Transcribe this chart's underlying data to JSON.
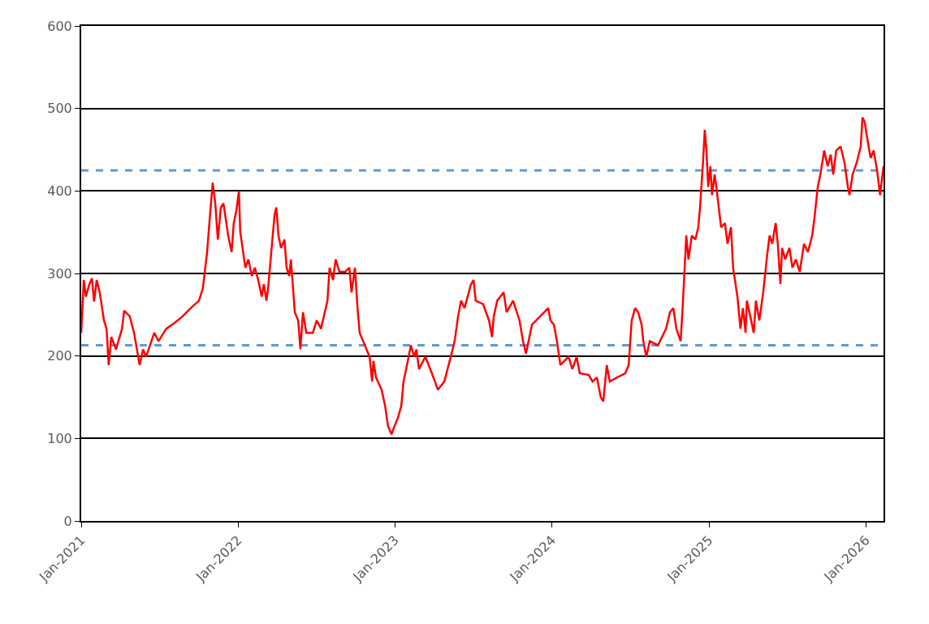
{
  "chart_data": {
    "type": "line",
    "grid": "y",
    "marker": "none",
    "line_style": "solid",
    "xlim": [
      "2021-01-01",
      "2026-02-11"
    ],
    "xticks": [
      {
        "value": "2021-01-01",
        "label": "Jan-2021"
      },
      {
        "value": "2022-01-01",
        "label": "Jan-2022"
      },
      {
        "value": "2023-01-01",
        "label": "Jan-2023"
      },
      {
        "value": "2024-01-01",
        "label": "Jan-2024"
      },
      {
        "value": "2025-01-01",
        "label": "Jan-2025"
      },
      {
        "value": "2026-01-01",
        "label": "Jan-2026"
      }
    ],
    "ylim": [
      0,
      600
    ],
    "yticks": [
      0,
      100,
      200,
      300,
      400,
      500,
      600
    ],
    "ref_lines": [
      {
        "axis": "y",
        "value": 425,
        "color": "#5b9bd5",
        "line_style": "dashed"
      },
      {
        "axis": "y",
        "value": 213,
        "color": "#5b9bd5",
        "line_style": "dashed"
      }
    ],
    "x": [
      "2021-01-01",
      "2021-01-07",
      "2021-01-12",
      "2021-01-20",
      "2021-01-26",
      "2021-01-31",
      "2021-02-06",
      "2021-02-13",
      "2021-02-23",
      "2021-03-01",
      "2021-03-06",
      "2021-03-12",
      "2021-03-23",
      "2021-04-06",
      "2021-04-11",
      "2021-04-24",
      "2021-05-04",
      "2021-05-17",
      "2021-05-25",
      "2021-06-01",
      "2021-06-20",
      "2021-06-30",
      "2021-07-18",
      "2021-08-06",
      "2021-08-25",
      "2021-09-13",
      "2021-10-02",
      "2021-10-11",
      "2021-10-21",
      "2021-10-27",
      "2021-11-03",
      "2021-11-09",
      "2021-11-15",
      "2021-11-22",
      "2021-11-28",
      "2021-12-09",
      "2021-12-17",
      "2021-12-22",
      "2021-12-28",
      "2022-01-03",
      "2022-01-06",
      "2022-01-18",
      "2022-01-25",
      "2022-02-02",
      "2022-02-09",
      "2022-02-17",
      "2022-02-25",
      "2022-03-02",
      "2022-03-08",
      "2022-03-12",
      "2022-03-21",
      "2022-03-27",
      "2022-03-31",
      "2022-04-05",
      "2022-04-11",
      "2022-04-19",
      "2022-04-24",
      "2022-04-30",
      "2022-05-04",
      "2022-05-13",
      "2022-05-21",
      "2022-05-26",
      "2022-06-01",
      "2022-06-09",
      "2022-06-24",
      "2022-07-03",
      "2022-07-13",
      "2022-07-28",
      "2022-08-02",
      "2022-08-10",
      "2022-08-16",
      "2022-08-25",
      "2022-09-07",
      "2022-09-17",
      "2022-09-22",
      "2022-09-30",
      "2022-10-06",
      "2022-10-11",
      "2022-10-19",
      "2022-11-03",
      "2022-11-09",
      "2022-11-12",
      "2022-11-18",
      "2022-12-01",
      "2022-12-09",
      "2022-12-16",
      "2022-12-24",
      "2022-12-31",
      "2023-01-08",
      "2023-01-16",
      "2023-01-21",
      "2023-01-27",
      "2023-02-02",
      "2023-02-07",
      "2023-02-15",
      "2023-02-20",
      "2023-02-26",
      "2023-03-13",
      "2023-03-28",
      "2023-04-11",
      "2023-04-26",
      "2023-05-11",
      "2023-05-20",
      "2023-05-28",
      "2023-06-04",
      "2023-06-12",
      "2023-06-27",
      "2023-07-03",
      "2023-07-08",
      "2023-07-25",
      "2023-08-08",
      "2023-08-15",
      "2023-08-19",
      "2023-08-27",
      "2023-09-11",
      "2023-09-18",
      "2023-10-03",
      "2023-10-18",
      "2023-10-26",
      "2023-11-02",
      "2023-11-08",
      "2023-11-16",
      "2023-12-05",
      "2023-12-24",
      "2023-12-29",
      "2024-01-06",
      "2024-01-13",
      "2024-01-21",
      "2024-02-09",
      "2024-02-18",
      "2024-02-28",
      "2024-03-06",
      "2024-03-27",
      "2024-04-05",
      "2024-04-15",
      "2024-04-24",
      "2024-04-30",
      "2024-05-08",
      "2024-05-15",
      "2024-06-01",
      "2024-06-20",
      "2024-06-28",
      "2024-07-05",
      "2024-07-13",
      "2024-07-20",
      "2024-07-28",
      "2024-08-01",
      "2024-08-08",
      "2024-08-16",
      "2024-09-04",
      "2024-09-23",
      "2024-10-02",
      "2024-10-10",
      "2024-10-17",
      "2024-10-27",
      "2024-11-01",
      "2024-11-09",
      "2024-11-14",
      "2024-11-22",
      "2024-11-30",
      "2024-12-07",
      "2024-12-11",
      "2024-12-18",
      "2024-12-22",
      "2024-12-26",
      "2024-12-30",
      "2025-01-04",
      "2025-01-08",
      "2025-01-14",
      "2025-01-18",
      "2025-01-29",
      "2025-02-07",
      "2025-02-13",
      "2025-02-21",
      "2025-02-26",
      "2025-03-08",
      "2025-03-15",
      "2025-03-21",
      "2025-03-27",
      "2025-03-30",
      "2025-04-07",
      "2025-04-15",
      "2025-04-20",
      "2025-04-28",
      "2025-05-07",
      "2025-05-17",
      "2025-05-22",
      "2025-05-28",
      "2025-06-05",
      "2025-06-10",
      "2025-06-16",
      "2025-06-20",
      "2025-06-27",
      "2025-07-07",
      "2025-07-14",
      "2025-07-22",
      "2025-07-31",
      "2025-08-10",
      "2025-08-19",
      "2025-08-29",
      "2025-09-03",
      "2025-09-11",
      "2025-09-17",
      "2025-09-26",
      "2025-10-04",
      "2025-10-11",
      "2025-10-17",
      "2025-10-24",
      "2025-11-03",
      "2025-11-12",
      "2025-11-20",
      "2025-11-24",
      "2025-12-01",
      "2025-12-11",
      "2025-12-20",
      "2025-12-24",
      "2025-12-29",
      "2026-01-04",
      "2026-01-12",
      "2026-01-19",
      "2026-01-27",
      "2026-02-03",
      "2026-02-11"
    ],
    "series": [
      {
        "color": "#ff0000",
        "values": [
          228,
          292,
          272,
          287,
          294,
          266,
          292,
          277,
          243,
          233,
          189,
          223,
          208,
          233,
          255,
          248,
          228,
          189,
          208,
          199,
          228,
          218,
          233,
          240,
          248,
          258,
          267,
          282,
          326,
          366,
          410,
          385,
          341,
          380,
          385,
          346,
          326,
          361,
          376,
          400,
          351,
          307,
          317,
          297,
          307,
          292,
          272,
          287,
          267,
          282,
          336,
          371,
          380,
          346,
          331,
          341,
          307,
          297,
          317,
          253,
          243,
          208,
          253,
          228,
          228,
          243,
          233,
          267,
          307,
          292,
          317,
          302,
          302,
          307,
          277,
          307,
          258,
          228,
          218,
          199,
          169,
          194,
          174,
          159,
          140,
          115,
          105,
          115,
          125,
          140,
          169,
          184,
          199,
          213,
          199,
          208,
          184,
          199,
          179,
          159,
          169,
          199,
          218,
          248,
          267,
          258,
          287,
          292,
          267,
          263,
          243,
          223,
          248,
          267,
          277,
          253,
          267,
          243,
          218,
          203,
          218,
          238,
          248,
          258,
          243,
          238,
          218,
          189,
          199,
          184,
          199,
          179,
          177,
          169,
          174,
          150,
          145,
          189,
          169,
          174,
          179,
          189,
          243,
          258,
          253,
          238,
          218,
          199,
          218,
          213,
          233,
          253,
          258,
          233,
          218,
          263,
          346,
          317,
          346,
          341,
          356,
          380,
          435,
          474,
          449,
          405,
          430,
          395,
          420,
          405,
          356,
          361,
          336,
          356,
          307,
          272,
          233,
          258,
          228,
          267,
          248,
          228,
          267,
          243,
          277,
          326,
          346,
          336,
          361,
          336,
          287,
          331,
          317,
          331,
          307,
          317,
          302,
          336,
          326,
          346,
          366,
          405,
          420,
          449,
          430,
          444,
          420,
          449,
          454,
          435,
          405,
          395,
          420,
          435,
          454,
          489,
          484,
          464,
          440,
          449,
          425,
          395,
          430
        ]
      }
    ]
  }
}
